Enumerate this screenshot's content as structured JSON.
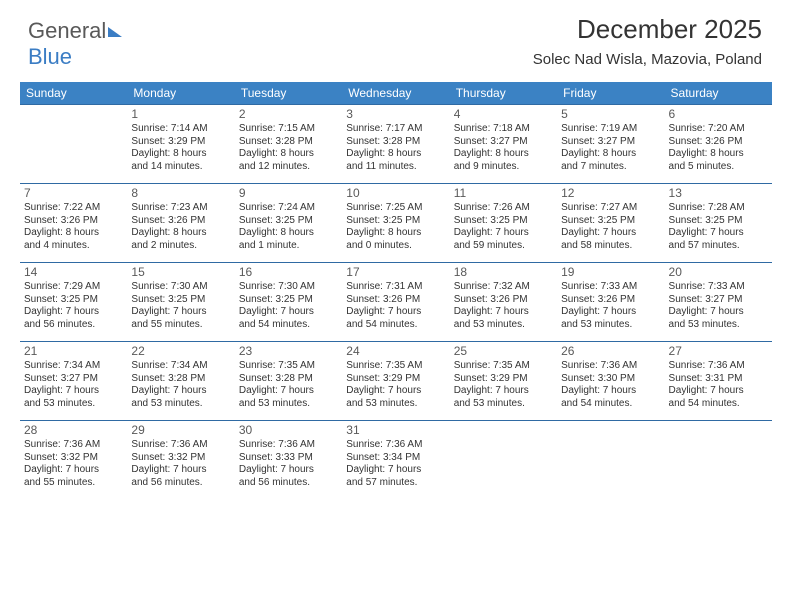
{
  "logo": {
    "textGray": "General",
    "textBlue": "Blue"
  },
  "header": {
    "month": "December 2025",
    "location": "Solec Nad Wisla, Mazovia, Poland"
  },
  "colors": {
    "headerBg": "#3b82c4",
    "headerText": "#ffffff",
    "weekBorder": "#2f6aa3",
    "bodyText": "#333333",
    "dayNum": "#595959"
  },
  "dayHeaders": [
    "Sunday",
    "Monday",
    "Tuesday",
    "Wednesday",
    "Thursday",
    "Friday",
    "Saturday"
  ],
  "weeks": [
    [
      {
        "day": "",
        "sunrise": "",
        "sunset": "",
        "daylight1": "",
        "daylight2": ""
      },
      {
        "day": "1",
        "sunrise": "Sunrise: 7:14 AM",
        "sunset": "Sunset: 3:29 PM",
        "daylight1": "Daylight: 8 hours",
        "daylight2": "and 14 minutes."
      },
      {
        "day": "2",
        "sunrise": "Sunrise: 7:15 AM",
        "sunset": "Sunset: 3:28 PM",
        "daylight1": "Daylight: 8 hours",
        "daylight2": "and 12 minutes."
      },
      {
        "day": "3",
        "sunrise": "Sunrise: 7:17 AM",
        "sunset": "Sunset: 3:28 PM",
        "daylight1": "Daylight: 8 hours",
        "daylight2": "and 11 minutes."
      },
      {
        "day": "4",
        "sunrise": "Sunrise: 7:18 AM",
        "sunset": "Sunset: 3:27 PM",
        "daylight1": "Daylight: 8 hours",
        "daylight2": "and 9 minutes."
      },
      {
        "day": "5",
        "sunrise": "Sunrise: 7:19 AM",
        "sunset": "Sunset: 3:27 PM",
        "daylight1": "Daylight: 8 hours",
        "daylight2": "and 7 minutes."
      },
      {
        "day": "6",
        "sunrise": "Sunrise: 7:20 AM",
        "sunset": "Sunset: 3:26 PM",
        "daylight1": "Daylight: 8 hours",
        "daylight2": "and 5 minutes."
      }
    ],
    [
      {
        "day": "7",
        "sunrise": "Sunrise: 7:22 AM",
        "sunset": "Sunset: 3:26 PM",
        "daylight1": "Daylight: 8 hours",
        "daylight2": "and 4 minutes."
      },
      {
        "day": "8",
        "sunrise": "Sunrise: 7:23 AM",
        "sunset": "Sunset: 3:26 PM",
        "daylight1": "Daylight: 8 hours",
        "daylight2": "and 2 minutes."
      },
      {
        "day": "9",
        "sunrise": "Sunrise: 7:24 AM",
        "sunset": "Sunset: 3:25 PM",
        "daylight1": "Daylight: 8 hours",
        "daylight2": "and 1 minute."
      },
      {
        "day": "10",
        "sunrise": "Sunrise: 7:25 AM",
        "sunset": "Sunset: 3:25 PM",
        "daylight1": "Daylight: 8 hours",
        "daylight2": "and 0 minutes."
      },
      {
        "day": "11",
        "sunrise": "Sunrise: 7:26 AM",
        "sunset": "Sunset: 3:25 PM",
        "daylight1": "Daylight: 7 hours",
        "daylight2": "and 59 minutes."
      },
      {
        "day": "12",
        "sunrise": "Sunrise: 7:27 AM",
        "sunset": "Sunset: 3:25 PM",
        "daylight1": "Daylight: 7 hours",
        "daylight2": "and 58 minutes."
      },
      {
        "day": "13",
        "sunrise": "Sunrise: 7:28 AM",
        "sunset": "Sunset: 3:25 PM",
        "daylight1": "Daylight: 7 hours",
        "daylight2": "and 57 minutes."
      }
    ],
    [
      {
        "day": "14",
        "sunrise": "Sunrise: 7:29 AM",
        "sunset": "Sunset: 3:25 PM",
        "daylight1": "Daylight: 7 hours",
        "daylight2": "and 56 minutes."
      },
      {
        "day": "15",
        "sunrise": "Sunrise: 7:30 AM",
        "sunset": "Sunset: 3:25 PM",
        "daylight1": "Daylight: 7 hours",
        "daylight2": "and 55 minutes."
      },
      {
        "day": "16",
        "sunrise": "Sunrise: 7:30 AM",
        "sunset": "Sunset: 3:25 PM",
        "daylight1": "Daylight: 7 hours",
        "daylight2": "and 54 minutes."
      },
      {
        "day": "17",
        "sunrise": "Sunrise: 7:31 AM",
        "sunset": "Sunset: 3:26 PM",
        "daylight1": "Daylight: 7 hours",
        "daylight2": "and 54 minutes."
      },
      {
        "day": "18",
        "sunrise": "Sunrise: 7:32 AM",
        "sunset": "Sunset: 3:26 PM",
        "daylight1": "Daylight: 7 hours",
        "daylight2": "and 53 minutes."
      },
      {
        "day": "19",
        "sunrise": "Sunrise: 7:33 AM",
        "sunset": "Sunset: 3:26 PM",
        "daylight1": "Daylight: 7 hours",
        "daylight2": "and 53 minutes."
      },
      {
        "day": "20",
        "sunrise": "Sunrise: 7:33 AM",
        "sunset": "Sunset: 3:27 PM",
        "daylight1": "Daylight: 7 hours",
        "daylight2": "and 53 minutes."
      }
    ],
    [
      {
        "day": "21",
        "sunrise": "Sunrise: 7:34 AM",
        "sunset": "Sunset: 3:27 PM",
        "daylight1": "Daylight: 7 hours",
        "daylight2": "and 53 minutes."
      },
      {
        "day": "22",
        "sunrise": "Sunrise: 7:34 AM",
        "sunset": "Sunset: 3:28 PM",
        "daylight1": "Daylight: 7 hours",
        "daylight2": "and 53 minutes."
      },
      {
        "day": "23",
        "sunrise": "Sunrise: 7:35 AM",
        "sunset": "Sunset: 3:28 PM",
        "daylight1": "Daylight: 7 hours",
        "daylight2": "and 53 minutes."
      },
      {
        "day": "24",
        "sunrise": "Sunrise: 7:35 AM",
        "sunset": "Sunset: 3:29 PM",
        "daylight1": "Daylight: 7 hours",
        "daylight2": "and 53 minutes."
      },
      {
        "day": "25",
        "sunrise": "Sunrise: 7:35 AM",
        "sunset": "Sunset: 3:29 PM",
        "daylight1": "Daylight: 7 hours",
        "daylight2": "and 53 minutes."
      },
      {
        "day": "26",
        "sunrise": "Sunrise: 7:36 AM",
        "sunset": "Sunset: 3:30 PM",
        "daylight1": "Daylight: 7 hours",
        "daylight2": "and 54 minutes."
      },
      {
        "day": "27",
        "sunrise": "Sunrise: 7:36 AM",
        "sunset": "Sunset: 3:31 PM",
        "daylight1": "Daylight: 7 hours",
        "daylight2": "and 54 minutes."
      }
    ],
    [
      {
        "day": "28",
        "sunrise": "Sunrise: 7:36 AM",
        "sunset": "Sunset: 3:32 PM",
        "daylight1": "Daylight: 7 hours",
        "daylight2": "and 55 minutes."
      },
      {
        "day": "29",
        "sunrise": "Sunrise: 7:36 AM",
        "sunset": "Sunset: 3:32 PM",
        "daylight1": "Daylight: 7 hours",
        "daylight2": "and 56 minutes."
      },
      {
        "day": "30",
        "sunrise": "Sunrise: 7:36 AM",
        "sunset": "Sunset: 3:33 PM",
        "daylight1": "Daylight: 7 hours",
        "daylight2": "and 56 minutes."
      },
      {
        "day": "31",
        "sunrise": "Sunrise: 7:36 AM",
        "sunset": "Sunset: 3:34 PM",
        "daylight1": "Daylight: 7 hours",
        "daylight2": "and 57 minutes."
      },
      {
        "day": "",
        "sunrise": "",
        "sunset": "",
        "daylight1": "",
        "daylight2": ""
      },
      {
        "day": "",
        "sunrise": "",
        "sunset": "",
        "daylight1": "",
        "daylight2": ""
      },
      {
        "day": "",
        "sunrise": "",
        "sunset": "",
        "daylight1": "",
        "daylight2": ""
      }
    ]
  ]
}
